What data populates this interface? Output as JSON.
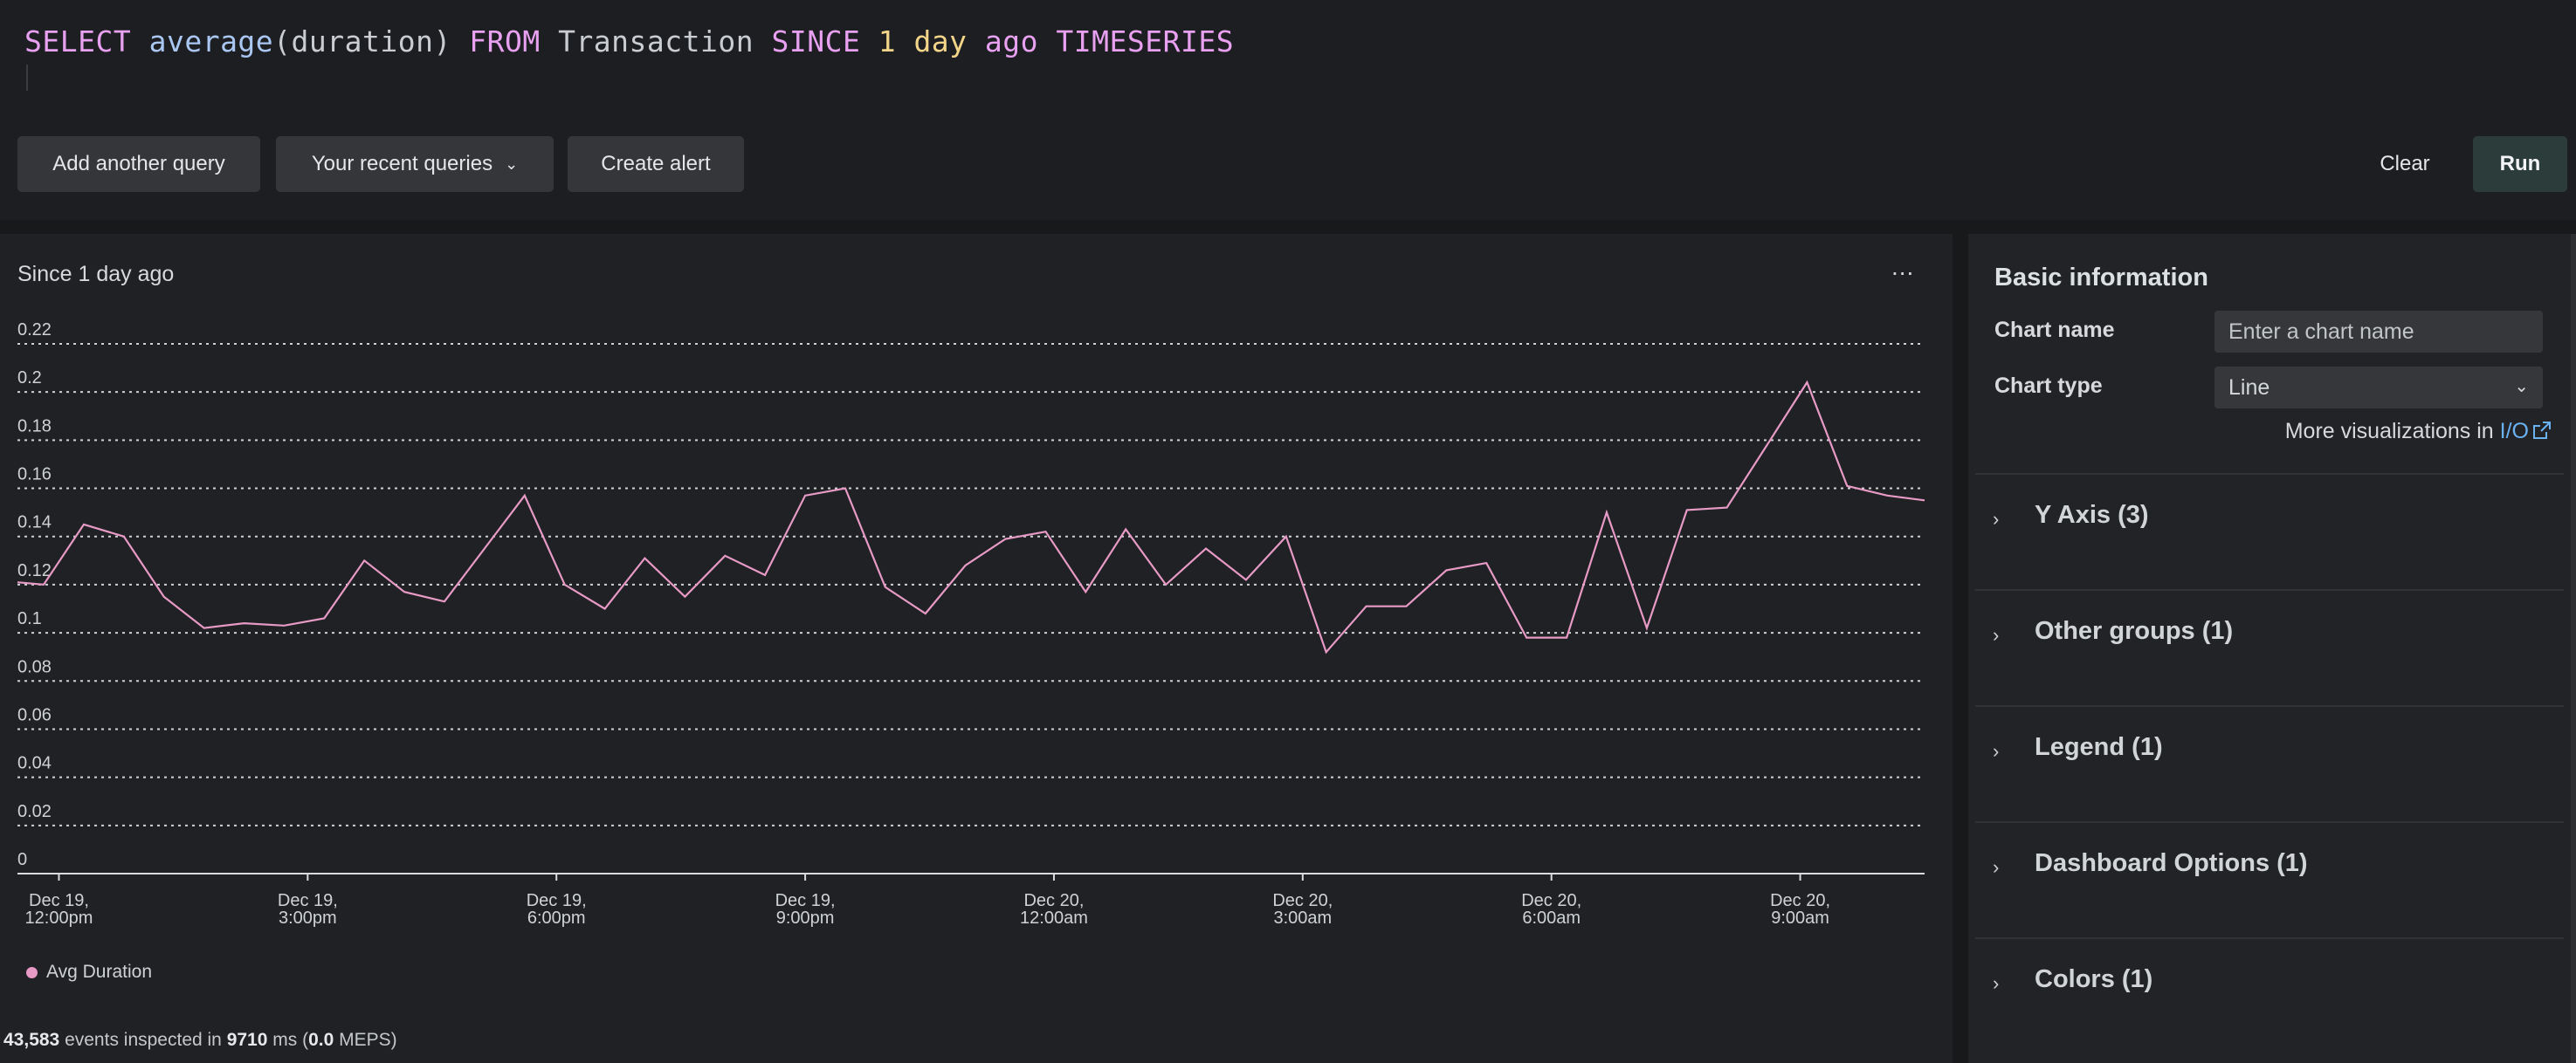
{
  "query": {
    "tokens": [
      {
        "text": "SELECT",
        "cls": "kw"
      },
      {
        "text": " ",
        "cls": "plain"
      },
      {
        "text": "average",
        "cls": "fn"
      },
      {
        "text": "(duration) ",
        "cls": "plain"
      },
      {
        "text": "FROM",
        "cls": "kw"
      },
      {
        "text": " Transaction ",
        "cls": "plain"
      },
      {
        "text": "SINCE",
        "cls": "kw"
      },
      {
        "text": " ",
        "cls": "plain"
      },
      {
        "text": "1 day",
        "cls": "num"
      },
      {
        "text": " ",
        "cls": "plain"
      },
      {
        "text": "ago",
        "cls": "kw"
      },
      {
        "text": " ",
        "cls": "plain"
      },
      {
        "text": "TIMESERIES",
        "cls": "kw"
      }
    ]
  },
  "toolbar": {
    "add_query": "Add another query",
    "recent_queries": "Your recent queries",
    "create_alert": "Create alert",
    "clear": "Clear",
    "run": "Run"
  },
  "chart_panel": {
    "since_label": "Since 1 day ago",
    "menu_label": "...",
    "legend_label": "Avg Duration",
    "footer": {
      "events": "43,583",
      "mid1": " events inspected in ",
      "ms": "9710",
      "mid2": " ms (",
      "meps": "0.0",
      "end": " MEPS)"
    }
  },
  "chart_data": {
    "type": "line",
    "title": "",
    "xlabel": "",
    "ylabel": "",
    "ylim": [
      0,
      0.22
    ],
    "yticks": [
      0,
      0.02,
      0.04,
      0.06,
      0.08,
      0.1,
      0.12,
      0.14,
      0.16,
      0.18,
      0.2,
      0.22
    ],
    "ytick_labels": [
      "0",
      "0.02",
      "0.04",
      "0.06",
      "0.08",
      "0.1",
      "0.12",
      "0.14",
      "0.16",
      "0.18",
      "0.2",
      "0.22"
    ],
    "xlim": [
      11.5,
      34.5
    ],
    "x_unit": "hours after Dec 19 00:00",
    "xticks": [
      {
        "x": 12,
        "line1": "Dec 19,",
        "line2": "12:00pm"
      },
      {
        "x": 15,
        "line1": "Dec 19,",
        "line2": "3:00pm"
      },
      {
        "x": 18,
        "line1": "Dec 19,",
        "line2": "6:00pm"
      },
      {
        "x": 21,
        "line1": "Dec 19,",
        "line2": "9:00pm"
      },
      {
        "x": 24,
        "line1": "Dec 20,",
        "line2": "12:00am"
      },
      {
        "x": 27,
        "line1": "Dec 20,",
        "line2": "3:00am"
      },
      {
        "x": 30,
        "line1": "Dec 20,",
        "line2": "6:00am"
      },
      {
        "x": 33,
        "line1": "Dec 20,",
        "line2": "9:00am"
      }
    ],
    "grid": true,
    "legend": "bottom-left",
    "series": [
      {
        "name": "Avg Duration",
        "color": "#e79ac5",
        "x": [
          11.333,
          11.816,
          12.3,
          12.783,
          13.266,
          13.75,
          14.233,
          14.716,
          15.2,
          15.683,
          16.166,
          16.65,
          17.133,
          17.616,
          18.1,
          18.583,
          19.066,
          19.55,
          20.033,
          20.516,
          21.0,
          21.483,
          21.966,
          22.45,
          22.933,
          23.416,
          23.9,
          24.383,
          24.866,
          25.35,
          25.833,
          26.316,
          26.8,
          27.283,
          27.766,
          28.25,
          28.733,
          29.216,
          29.7,
          30.183,
          30.666,
          31.15,
          31.633,
          32.116,
          32.6,
          33.083,
          33.566,
          34.05,
          34.533
        ],
        "y": [
          0.121,
          0.12,
          0.145,
          0.14,
          0.115,
          0.102,
          0.104,
          0.103,
          0.106,
          0.13,
          0.117,
          0.113,
          0.135,
          0.157,
          0.12,
          0.11,
          0.131,
          0.115,
          0.132,
          0.124,
          0.157,
          0.16,
          0.119,
          0.108,
          0.128,
          0.139,
          0.142,
          0.117,
          0.143,
          0.12,
          0.135,
          0.122,
          0.14,
          0.092,
          0.111,
          0.111,
          0.126,
          0.129,
          0.098,
          0.098,
          0.15,
          0.102,
          0.151,
          0.152,
          0.178,
          0.204,
          0.161,
          0.157,
          0.155
        ]
      }
    ]
  },
  "side_panel": {
    "title": "Basic information",
    "chart_name_label": "Chart name",
    "chart_name_placeholder": "Enter a chart name",
    "chart_type_label": "Chart type",
    "chart_type_value": "Line",
    "more_vis_text": "More visualizations in ",
    "more_vis_link": "I/O",
    "sections": [
      "Y Axis (3)",
      "Other groups (1)",
      "Legend (1)",
      "Dashboard Options (1)",
      "Colors (1)"
    ]
  },
  "icons": {
    "dropdown": "chevron-down-icon",
    "external": "external-link-icon",
    "section": "chevron-right-icon"
  }
}
